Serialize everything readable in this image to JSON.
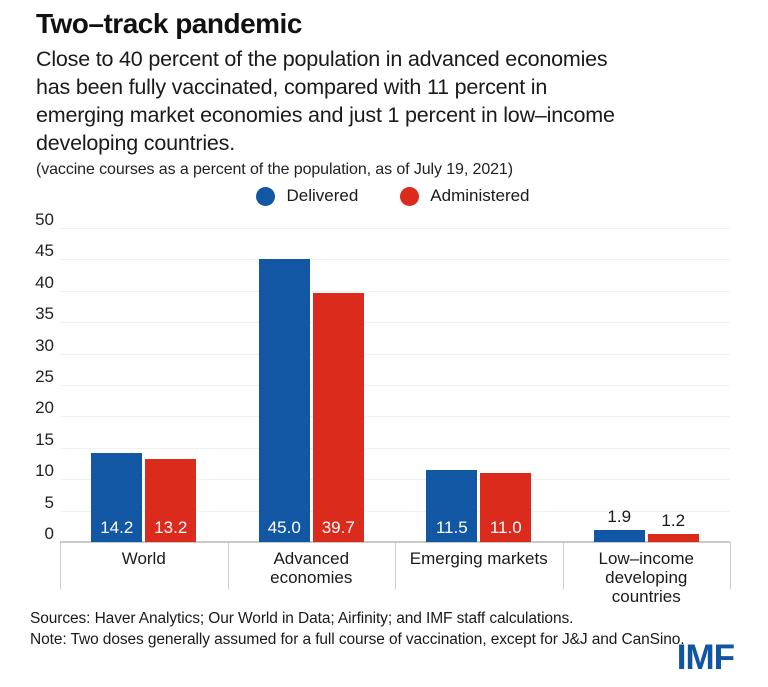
{
  "header": {
    "title": "Two–track pandemic",
    "subtitle_lines": [
      "Close to 40 percent of the population in advanced economies",
      "has been fully vaccinated, compared with 11 percent in",
      "emerging market economies and just 1 percent in low–income",
      "developing countries."
    ],
    "caption": "(vaccine courses as a percent of the population, as of July 19, 2021)"
  },
  "chart_data": {
    "type": "bar",
    "categories": [
      "World",
      "Advanced economies",
      "Emerging markets",
      "Low–income developing countries"
    ],
    "series": [
      {
        "name": "Delivered",
        "color": "#1157A4",
        "values": [
          14.2,
          45.0,
          11.5,
          1.9
        ]
      },
      {
        "name": "Administered",
        "color": "#DA2B1C",
        "values": [
          13.2,
          39.7,
          11.0,
          1.2
        ]
      }
    ],
    "title": "Two–track pandemic",
    "xlabel": "",
    "ylabel": "vaccine courses as a percent of the population",
    "ylim": [
      0,
      50
    ],
    "ytick_step": 5,
    "grid": true,
    "legend_position": "top-center",
    "value_label_format": "one_decimal",
    "value_label_placement": "inside bar bottom (white) for large bars, above bar (dark) for values under 5"
  },
  "footer": {
    "sources": "Sources: Haver Analytics; Our World in Data; Airfinity; and IMF staff calculations.",
    "note": "Note: Two doses generally assumed for a full course of vaccination, except for J&J and CanSino.",
    "logo": "IMF"
  },
  "colors": {
    "delivered_blue": "#1157A4",
    "administered_red": "#DA2B1C",
    "logo_blue": "#0F55A2",
    "gridline": "#F1F1F1",
    "axis_line": "#C9C9C9",
    "text": "#1A1A1A"
  }
}
